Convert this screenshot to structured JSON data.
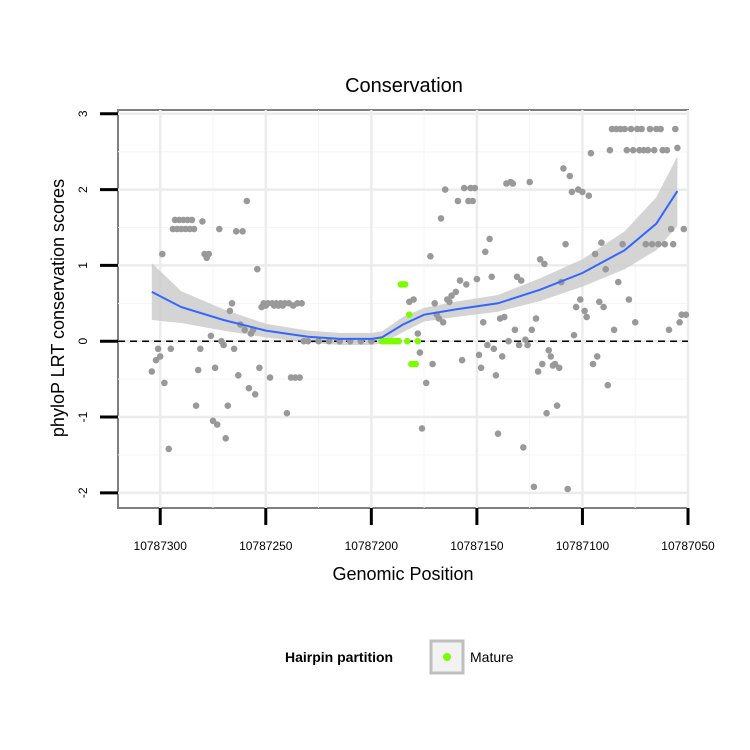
{
  "chart_data": {
    "type": "scatter",
    "title": "Conservation",
    "xlabel": "Genomic Position",
    "ylabel": "phyloP LRT conservation scores",
    "xlim": [
      10787320,
      10787050
    ],
    "ylim": [
      -2.2,
      3.05
    ],
    "x_reversed": true,
    "x_ticks": [
      10787300,
      10787250,
      10787200,
      10787150,
      10787100,
      10787050
    ],
    "x_tick_labels": [
      "10787300",
      "10787250",
      "10787200",
      "10787150",
      "10787100",
      "10787050"
    ],
    "y_ticks": [
      -2,
      -1,
      0,
      1,
      2,
      3
    ],
    "y_tick_labels": [
      "-2",
      "-1",
      "0",
      "1",
      "2",
      "3"
    ],
    "grid": true,
    "reference_line": {
      "y": 0,
      "style": "dashed",
      "color": "#000000"
    },
    "legend": {
      "title": "Hairpin partition",
      "position": "bottom",
      "entries": [
        {
          "label": "Mature",
          "color": "#7cfc00"
        }
      ]
    },
    "colors": {
      "other_points": "#999999",
      "mature": "#7cfc00",
      "smooth": "#3366ff",
      "band": "#cccccc"
    },
    "series": [
      {
        "role": "other",
        "points": [
          [
            10787304,
            -0.4
          ],
          [
            10787302,
            -0.25
          ],
          [
            10787301,
            -0.1
          ],
          [
            10787300,
            -0.2
          ],
          [
            10787299,
            1.15
          ],
          [
            10787298,
            -0.55
          ],
          [
            10787296,
            -1.42
          ],
          [
            10787295,
            -0.1
          ],
          [
            10787294,
            1.48
          ],
          [
            10787293,
            1.6
          ],
          [
            10787292,
            1.48
          ],
          [
            10787291,
            1.6
          ],
          [
            10787290,
            1.48
          ],
          [
            10787289,
            1.6
          ],
          [
            10787288,
            1.48
          ],
          [
            10787287,
            1.6
          ],
          [
            10787286,
            1.48
          ],
          [
            10787285,
            1.6
          ],
          [
            10787284,
            1.48
          ],
          [
            10787283,
            -0.85
          ],
          [
            10787282,
            -0.38
          ],
          [
            10787281,
            -0.1
          ],
          [
            10787280,
            1.58
          ],
          [
            10787279,
            1.15
          ],
          [
            10787278,
            1.1
          ],
          [
            10787277,
            1.15
          ],
          [
            10787276,
            0.07
          ],
          [
            10787275,
            -1.05
          ],
          [
            10787274,
            -0.35
          ],
          [
            10787273,
            -1.1
          ],
          [
            10787272,
            1.48
          ],
          [
            10787271,
            0.0
          ],
          [
            10787270,
            -0.05
          ],
          [
            10787269,
            -1.28
          ],
          [
            10787268,
            -0.85
          ],
          [
            10787267,
            0.4
          ],
          [
            10787266,
            0.5
          ],
          [
            10787265,
            -0.1
          ],
          [
            10787264,
            1.45
          ],
          [
            10787263,
            -0.45
          ],
          [
            10787262,
            0.22
          ],
          [
            10787261,
            1.45
          ],
          [
            10787260,
            0.15
          ],
          [
            10787259,
            1.85
          ],
          [
            10787258,
            -0.62
          ],
          [
            10787257,
            0.1
          ],
          [
            10787256,
            0.15
          ],
          [
            10787255,
            -0.7
          ],
          [
            10787254,
            0.95
          ],
          [
            10787253,
            -0.35
          ],
          [
            10787252,
            0.45
          ],
          [
            10787251,
            0.5
          ],
          [
            10787250,
            0.47
          ],
          [
            10787249,
            0.5
          ],
          [
            10787248,
            -0.48
          ],
          [
            10787247,
            0.5
          ],
          [
            10787246,
            0.47
          ],
          [
            10787245,
            0.5
          ],
          [
            10787244,
            0.47
          ],
          [
            10787243,
            0.5
          ],
          [
            10787242,
            0.47
          ],
          [
            10787241,
            0.5
          ],
          [
            10787240,
            -0.95
          ],
          [
            10787239,
            0.5
          ],
          [
            10787238,
            -0.48
          ],
          [
            10787237,
            0.47
          ],
          [
            10787236,
            -0.48
          ],
          [
            10787235,
            0.5
          ],
          [
            10787234,
            -0.48
          ],
          [
            10787233,
            0.5
          ],
          [
            10787232,
            0.0
          ],
          [
            10787230,
            0.0
          ],
          [
            10787225,
            0.0
          ],
          [
            10787220,
            0.0
          ],
          [
            10787215,
            0.0
          ],
          [
            10787210,
            0.0
          ],
          [
            10787205,
            0.0
          ],
          [
            10787200,
            0.0
          ],
          [
            10787182,
            0.52
          ],
          [
            10787180,
            0.55
          ],
          [
            10787178,
            0.1
          ],
          [
            10787177,
            -0.15
          ],
          [
            10787176,
            -1.15
          ],
          [
            10787174,
            -0.55
          ],
          [
            10787172,
            1.12
          ],
          [
            10787171,
            -0.3
          ],
          [
            10787170,
            0.5
          ],
          [
            10787169,
            0.35
          ],
          [
            10787168,
            0.3
          ],
          [
            10787167,
            1.62
          ],
          [
            10787166,
            0.25
          ],
          [
            10787165,
            2.0
          ],
          [
            10787164,
            0.55
          ],
          [
            10787163,
            0.52
          ],
          [
            10787162,
            0.6
          ],
          [
            10787160,
            0.65
          ],
          [
            10787159,
            1.85
          ],
          [
            10787158,
            0.8
          ],
          [
            10787157,
            -0.25
          ],
          [
            10787156,
            2.02
          ],
          [
            10787155,
            0.75
          ],
          [
            10787154,
            1.85
          ],
          [
            10787153,
            2.02
          ],
          [
            10787152,
            1.85
          ],
          [
            10787151,
            2.02
          ],
          [
            10787150,
            0.82
          ],
          [
            10787149,
            -0.18
          ],
          [
            10787148,
            -0.35
          ],
          [
            10787147,
            0.25
          ],
          [
            10787146,
            1.18
          ],
          [
            10787145,
            -0.05
          ],
          [
            10787144,
            1.35
          ],
          [
            10787143,
            0.85
          ],
          [
            10787142,
            -0.1
          ],
          [
            10787141,
            -0.45
          ],
          [
            10787140,
            -1.22
          ],
          [
            10787139,
            0.3
          ],
          [
            10787138,
            -0.2
          ],
          [
            10787137,
            0.32
          ],
          [
            10787136,
            2.08
          ],
          [
            10787135,
            0.0
          ],
          [
            10787134,
            2.1
          ],
          [
            10787133,
            2.08
          ],
          [
            10787132,
            0.15
          ],
          [
            10787131,
            0.85
          ],
          [
            10787130,
            -0.05
          ],
          [
            10787129,
            0.8
          ],
          [
            10787128,
            -1.4
          ],
          [
            10787127,
            0.02
          ],
          [
            10787126,
            -0.05
          ],
          [
            10787125,
            2.1
          ],
          [
            10787124,
            0.15
          ],
          [
            10787123,
            -1.92
          ],
          [
            10787122,
            0.3
          ],
          [
            10787121,
            -0.4
          ],
          [
            10787120,
            1.08
          ],
          [
            10787119,
            -0.3
          ],
          [
            10787118,
            1.02
          ],
          [
            10787117,
            -0.95
          ],
          [
            10787116,
            -0.12
          ],
          [
            10787115,
            -0.2
          ],
          [
            10787114,
            -0.32
          ],
          [
            10787113,
            -0.3
          ],
          [
            10787112,
            -0.85
          ],
          [
            10787111,
            -0.35
          ],
          [
            10787110,
            0.78
          ],
          [
            10787109,
            2.28
          ],
          [
            10787108,
            1.28
          ],
          [
            10787107,
            -1.95
          ],
          [
            10787106,
            2.18
          ],
          [
            10787105,
            1.97
          ],
          [
            10787104,
            0.08
          ],
          [
            10787103,
            0.45
          ],
          [
            10787102,
            2.0
          ],
          [
            10787101,
            0.55
          ],
          [
            10787100,
            1.97
          ],
          [
            10787099,
            0.4
          ],
          [
            10787098,
            0.32
          ],
          [
            10787097,
            1.92
          ],
          [
            10787096,
            2.48
          ],
          [
            10787095,
            -0.3
          ],
          [
            10787094,
            1.15
          ],
          [
            10787093,
            -0.2
          ],
          [
            10787092,
            0.52
          ],
          [
            10787091,
            1.3
          ],
          [
            10787090,
            0.45
          ],
          [
            10787089,
            0.95
          ],
          [
            10787088,
            -0.58
          ],
          [
            10787087,
            2.52
          ],
          [
            10787086,
            2.8
          ],
          [
            10787085,
            0.15
          ],
          [
            10787084,
            2.8
          ],
          [
            10787083,
            0.78
          ],
          [
            10787082,
            2.8
          ],
          [
            10787081,
            1.28
          ],
          [
            10787080,
            2.8
          ],
          [
            10787079,
            2.52
          ],
          [
            10787078,
            0.55
          ],
          [
            10787077,
            2.8
          ],
          [
            10787076,
            2.52
          ],
          [
            10787075,
            0.25
          ],
          [
            10787074,
            2.8
          ],
          [
            10787073,
            2.52
          ],
          [
            10787072,
            2.8
          ],
          [
            10787071,
            2.52
          ],
          [
            10787070,
            1.28
          ],
          [
            10787069,
            2.52
          ],
          [
            10787068,
            2.8
          ],
          [
            10787067,
            1.28
          ],
          [
            10787066,
            2.52
          ],
          [
            10787065,
            2.8
          ],
          [
            10787064,
            1.28
          ],
          [
            10787063,
            2.8
          ],
          [
            10787062,
            2.52
          ],
          [
            10787061,
            1.28
          ],
          [
            10787060,
            2.52
          ],
          [
            10787059,
            0.15
          ],
          [
            10787058,
            1.48
          ],
          [
            10787057,
            1.28
          ],
          [
            10787056,
            2.8
          ],
          [
            10787055,
            2.55
          ],
          [
            10787054,
            0.25
          ],
          [
            10787053,
            0.35
          ],
          [
            10787052,
            1.48
          ],
          [
            10787051,
            0.35
          ]
        ]
      },
      {
        "name": "Mature",
        "role": "mature",
        "points": [
          [
            10787195,
            0.0
          ],
          [
            10787194,
            0.0
          ],
          [
            10787193,
            0.0
          ],
          [
            10787192,
            0.0
          ],
          [
            10787191,
            0.0
          ],
          [
            10787190,
            0.0
          ],
          [
            10787189,
            0.0
          ],
          [
            10787188,
            0.0
          ],
          [
            10787187,
            0.0
          ],
          [
            10787186,
            0.75
          ],
          [
            10787185,
            0.75
          ],
          [
            10787184,
            0.75
          ],
          [
            10787183,
            0.0
          ],
          [
            10787182,
            0.35
          ],
          [
            10787181,
            -0.3
          ],
          [
            10787180,
            -0.3
          ],
          [
            10787179,
            -0.3
          ],
          [
            10787178,
            0.0
          ]
        ]
      }
    ],
    "smooth": {
      "x": [
        10787304,
        10787290,
        10787270,
        10787250,
        10787230,
        10787215,
        10787200,
        10787195,
        10787185,
        10787175,
        10787160,
        10787140,
        10787120,
        10787100,
        10787080,
        10787065,
        10787055
      ],
      "y": [
        0.65,
        0.45,
        0.28,
        0.14,
        0.06,
        0.03,
        0.03,
        0.05,
        0.22,
        0.35,
        0.42,
        0.5,
        0.68,
        0.9,
        1.2,
        1.55,
        1.98
      ],
      "lower": [
        0.28,
        0.24,
        0.14,
        0.05,
        -0.02,
        -0.05,
        -0.05,
        -0.03,
        0.12,
        0.26,
        0.32,
        0.39,
        0.53,
        0.72,
        0.95,
        1.2,
        1.52
      ],
      "upper": [
        1.03,
        0.66,
        0.42,
        0.23,
        0.14,
        0.11,
        0.11,
        0.13,
        0.32,
        0.44,
        0.52,
        0.61,
        0.83,
        1.08,
        1.45,
        1.9,
        2.44
      ]
    }
  }
}
